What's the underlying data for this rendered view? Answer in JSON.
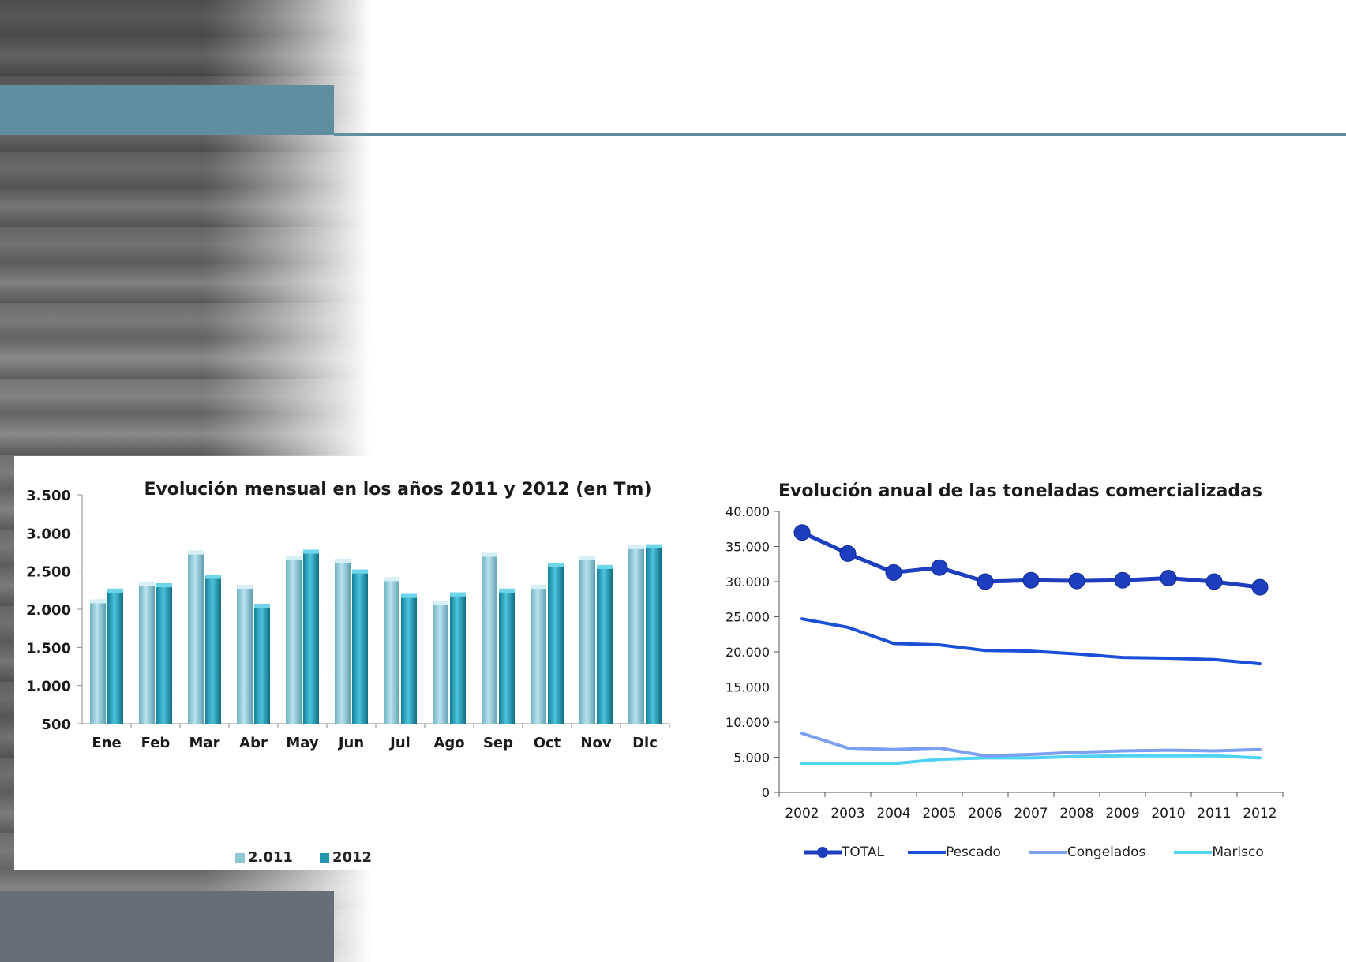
{
  "colors": {
    "accent_bar": "#5f8e9e",
    "footer_bar": "#676d79",
    "bar_2011": "#8fc9d8",
    "bar_2012": "#2196ad",
    "total": "#1d3fbf",
    "pescado": "#1c4fd8",
    "congelados": "#7b9ff2",
    "marisco": "#4fd2f5"
  },
  "chart_data": [
    {
      "type": "bar",
      "title": "Evolución mensual en los años 2011 y 2012 (en Tm)",
      "categories": [
        "Ene",
        "Feb",
        "Mar",
        "Abr",
        "May",
        "Jun",
        "Jul",
        "Ago",
        "Sep",
        "Oct",
        "Nov",
        "Dic"
      ],
      "series": [
        {
          "name": "2.011",
          "values": [
            2130,
            2360,
            2770,
            2320,
            2700,
            2660,
            2420,
            2110,
            2740,
            2320,
            2700,
            2840
          ]
        },
        {
          "name": "2012",
          "values": [
            2270,
            2340,
            2450,
            2070,
            2780,
            2520,
            2200,
            2220,
            2270,
            2600,
            2580,
            2850
          ]
        }
      ],
      "ylim": [
        500,
        3500
      ],
      "yticks": [
        "500",
        "1.000",
        "1.500",
        "2.000",
        "2.500",
        "3.000",
        "3.500"
      ],
      "ytick_values": [
        500,
        1000,
        1500,
        2000,
        2500,
        3000,
        3500
      ],
      "legend_position": "bottom",
      "grid": false
    },
    {
      "type": "line",
      "title": "Evolución anual de las toneladas comercializadas",
      "x": [
        "2002",
        "2003",
        "2004",
        "2005",
        "2006",
        "2007",
        "2008",
        "2009",
        "2010",
        "2011",
        "2012"
      ],
      "series": [
        {
          "name": "TOTAL",
          "values": [
            37000,
            34000,
            31300,
            32000,
            30000,
            30200,
            30100,
            30200,
            30500,
            30000,
            29200
          ],
          "markers": true
        },
        {
          "name": "Pescado",
          "values": [
            24700,
            23500,
            21200,
            21000,
            20200,
            20100,
            19700,
            19200,
            19100,
            18900,
            18300
          ],
          "markers": false
        },
        {
          "name": "Congelados",
          "values": [
            8400,
            6300,
            6100,
            6300,
            5200,
            5400,
            5700,
            5900,
            6000,
            5900,
            6100
          ],
          "markers": false
        },
        {
          "name": "Marisco",
          "values": [
            4100,
            4100,
            4100,
            4700,
            4900,
            4900,
            5100,
            5200,
            5200,
            5200,
            4900
          ],
          "markers": false
        }
      ],
      "ylim": [
        0,
        40000
      ],
      "yticks": [
        "0",
        "5.000",
        "10.000",
        "15.000",
        "20.000",
        "25.000",
        "30.000",
        "35.000",
        "40.000"
      ],
      "ytick_values": [
        0,
        5000,
        10000,
        15000,
        20000,
        25000,
        30000,
        35000,
        40000
      ],
      "legend_position": "bottom",
      "grid": false
    }
  ]
}
